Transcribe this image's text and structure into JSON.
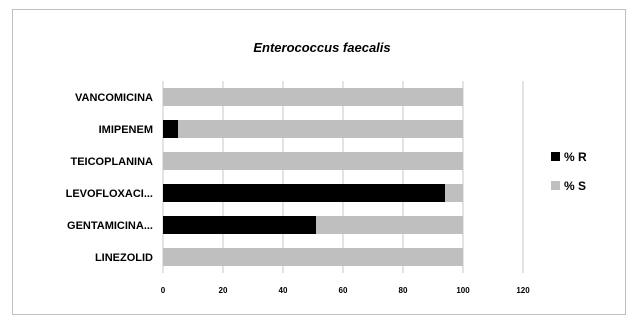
{
  "chart_data": {
    "type": "bar",
    "orientation": "horizontal",
    "stacked": true,
    "title": "Enterococcus faecalis",
    "categories": [
      "VANCOMICINA",
      "IMIPENEM",
      "TEICOPLANINA",
      "LEVOFLOXACI...",
      "GENTAMICINA...",
      "LINEZOLID"
    ],
    "series": [
      {
        "name": "% R",
        "color": "#000000",
        "values": [
          0,
          5,
          0,
          94,
          51,
          0
        ]
      },
      {
        "name": "% S",
        "color": "#bfbfbf",
        "values": [
          100,
          95,
          100,
          6,
          49,
          100
        ]
      }
    ],
    "xlim": [
      0,
      120
    ],
    "xticks": [
      0,
      20,
      40,
      60,
      80,
      100,
      120
    ],
    "grid": "vertical",
    "legend_position": "right"
  }
}
